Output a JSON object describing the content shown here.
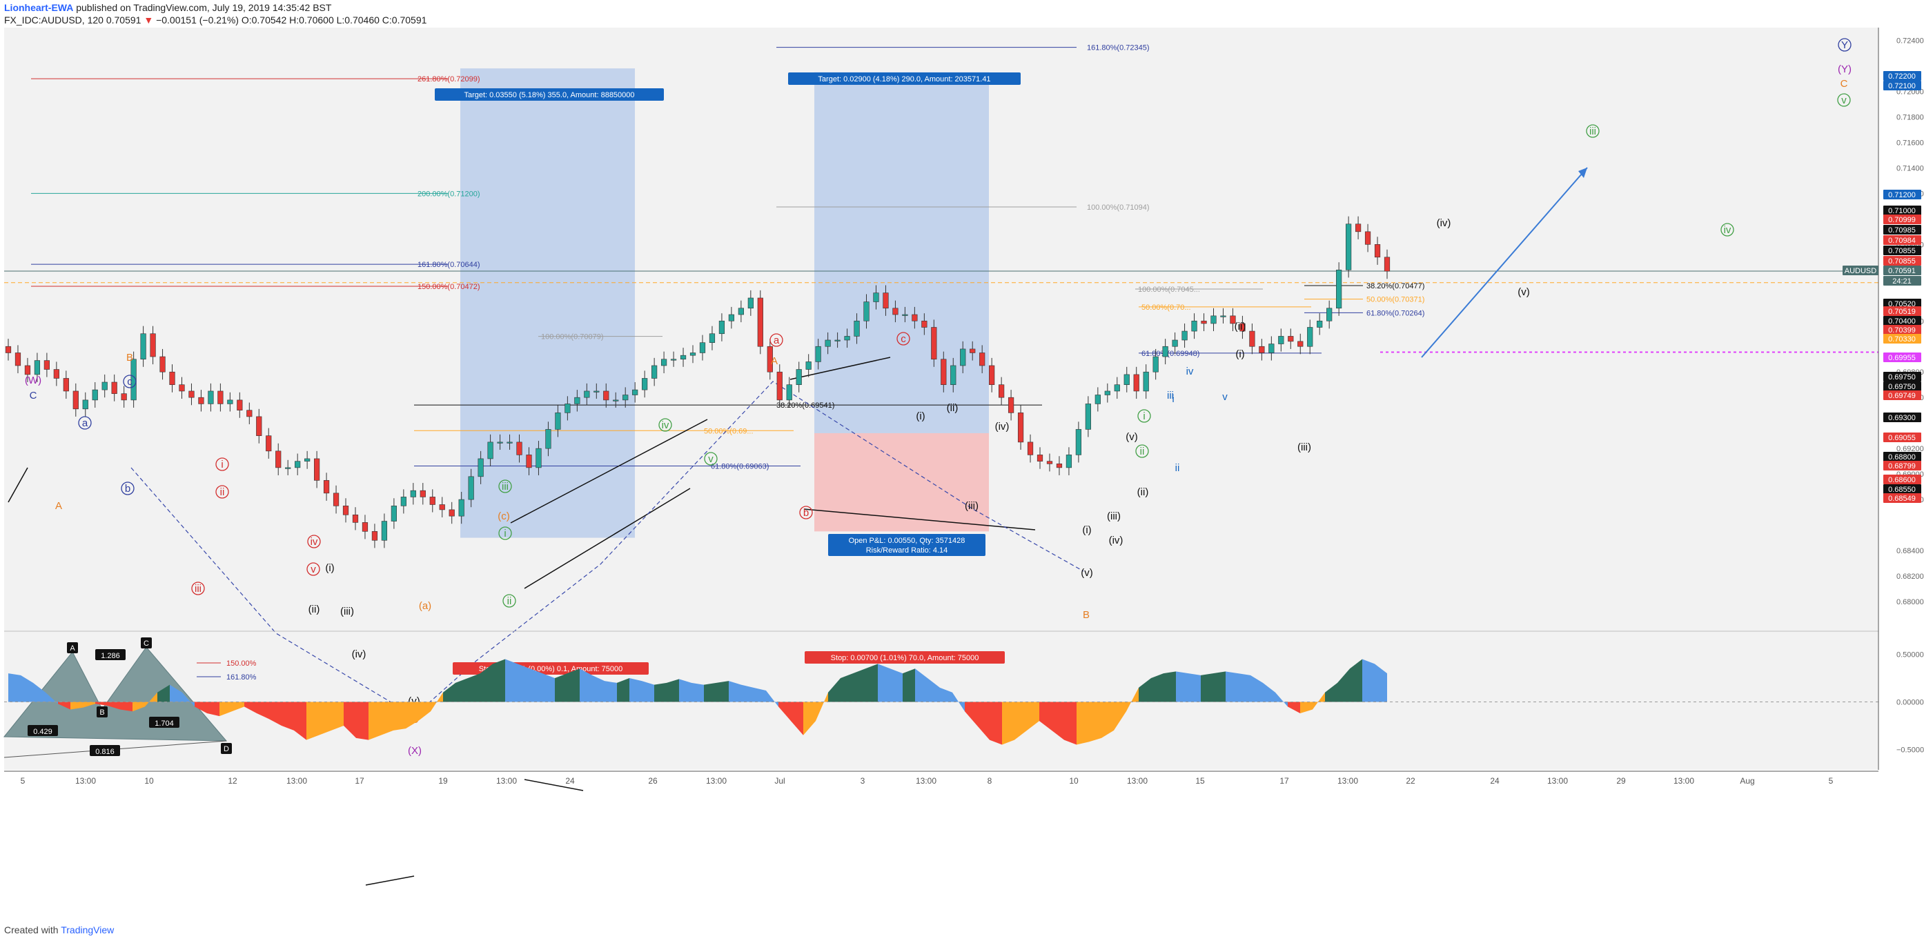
{
  "header": {
    "author": "Lionheart-EWA",
    "published": "published on TradingView.com, July 19, 2019 14:35:42 BST",
    "symbol": "FX_IDC:AUDUSD, 120",
    "last": "0.70591",
    "change": "−0.00151 (−0.21%)",
    "ohlc": "O:0.70542 H:0.70600 L:0.70460 C:0.70591"
  },
  "footer": {
    "created_with": "Created with",
    "brand": "TradingView"
  },
  "colors": {
    "up": "#26a69a",
    "down": "#e53935",
    "target_zone": "#c3d3ec",
    "stop_zone": "#f5c3c3",
    "osc_up": "#2e6b57",
    "osc_blue": "#5b9be6",
    "osc_red": "#f44336",
    "osc_orange": "#ffa726"
  },
  "chart_data": [
    {
      "type": "candlestick",
      "title": "AUDUSD 120",
      "ylim": [
        0.678,
        0.725
      ],
      "y_ticks": [
        "0.72400",
        "0.72000",
        "0.71800",
        "0.71600",
        "0.71400",
        "0.71200",
        "0.70800",
        "0.70200",
        "0.69800",
        "0.69600",
        "0.69200",
        "0.69000",
        "0.68800",
        "0.68400",
        "0.68200",
        "0.68000"
      ],
      "x_ticks": [
        "5",
        "13:00",
        "10",
        "12",
        "13:00",
        "17",
        "19",
        "13:00",
        "24",
        "26",
        "13:00",
        "Jul",
        "3",
        "13:00",
        "8",
        "10",
        "13:00",
        "15",
        "17",
        "13:00",
        "22",
        "24",
        "13:00",
        "29",
        "13:00",
        "Aug",
        "5"
      ],
      "grid": false,
      "current_price": {
        "symbol": "AUDUSD",
        "value": "0.70591",
        "countdown": "24:21"
      },
      "price_badges": [
        {
          "v": "0.72200",
          "c": "#1565c0"
        },
        {
          "v": "0.72100",
          "c": "#1565c0"
        },
        {
          "v": "0.71200",
          "c": "#1565c0"
        },
        {
          "v": "0.71000",
          "c": "#111111"
        },
        {
          "v": "0.70999",
          "c": "#e53935"
        },
        {
          "v": "0.70985",
          "c": "#111111"
        },
        {
          "v": "0.70984",
          "c": "#e53935"
        },
        {
          "v": "0.70855",
          "c": "#111111"
        },
        {
          "v": "0.70855",
          "c": "#e53935"
        },
        {
          "v": "0.70520",
          "c": "#111111"
        },
        {
          "v": "0.70519",
          "c": "#e53935"
        },
        {
          "v": "0.70400",
          "c": "#111111"
        },
        {
          "v": "0.70399",
          "c": "#e53935"
        },
        {
          "v": "0.70330",
          "c": "#ffa726"
        },
        {
          "v": "0.69955",
          "c": "#e040fb"
        },
        {
          "v": "0.69750",
          "c": "#111111"
        },
        {
          "v": "0.69750",
          "c": "#111111"
        },
        {
          "v": "0.69749",
          "c": "#e53935"
        },
        {
          "v": "0.69300",
          "c": "#111111"
        },
        {
          "v": "0.69055",
          "c": "#e53935"
        },
        {
          "v": "0.68800",
          "c": "#111111"
        },
        {
          "v": "0.68799",
          "c": "#e53935"
        },
        {
          "v": "0.68600",
          "c": "#e53935"
        },
        {
          "v": "0.68550",
          "c": "#111111"
        },
        {
          "v": "0.68549",
          "c": "#e53935"
        }
      ],
      "closes": [
        0.6995,
        0.6985,
        0.6978,
        0.6989,
        0.6982,
        0.6975,
        0.6965,
        0.6951,
        0.6958,
        0.6966,
        0.6972,
        0.6963,
        0.6958,
        0.699,
        0.701,
        0.6992,
        0.698,
        0.697,
        0.6965,
        0.696,
        0.6955,
        0.6965,
        0.6955,
        0.6958,
        0.695,
        0.6945,
        0.693,
        0.6918,
        0.6905,
        0.6905,
        0.691,
        0.6912,
        0.6895,
        0.6885,
        0.6875,
        0.6868,
        0.6862,
        0.6855,
        0.6848,
        0.6863,
        0.6875,
        0.6882,
        0.6887,
        0.6882,
        0.6876,
        0.6872,
        0.6867,
        0.688,
        0.6898,
        0.6912,
        0.6925,
        0.6925,
        0.6925,
        0.6915,
        0.6905,
        0.692,
        0.6935,
        0.6948,
        0.6955,
        0.696,
        0.6965,
        0.6965,
        0.6958,
        0.6958,
        0.6962,
        0.6966,
        0.6975,
        0.6985,
        0.699,
        0.699,
        0.6993,
        0.6995,
        0.7003,
        0.701,
        0.702,
        0.7025,
        0.703,
        0.7038,
        0.7,
        0.698,
        0.6958,
        0.697,
        0.6982,
        0.6988,
        0.7,
        0.7005,
        0.7005,
        0.7008,
        0.702,
        0.7035,
        0.7042,
        0.703,
        0.7025,
        0.7025,
        0.702,
        0.7015,
        0.699,
        0.697,
        0.6985,
        0.6998,
        0.6995,
        0.6985,
        0.697,
        0.696,
        0.6948,
        0.6925,
        0.6915,
        0.691,
        0.6908,
        0.6905,
        0.6915,
        0.6935,
        0.6955,
        0.6962,
        0.6965,
        0.697,
        0.6978,
        0.6965,
        0.698,
        0.6992,
        0.7,
        0.7005,
        0.7012,
        0.702,
        0.7018,
        0.7024,
        0.7024,
        0.7018,
        0.7012,
        0.7,
        0.6995,
        0.7002,
        0.7008,
        0.7004,
        0.7,
        0.7015,
        0.702,
        0.703,
        0.706,
        0.7096,
        0.709,
        0.708,
        0.707,
        0.7059
      ],
      "reference_levels": [
        {
          "label": "261.80%(0.72099)",
          "value": 0.72099,
          "color": "#d32f2f"
        },
        {
          "label": "200.00%(0.71200)",
          "value": 0.712,
          "color": "#26a69a"
        },
        {
          "label": "161.80%(0.70644)",
          "value": 0.70644,
          "color": "#303f9f"
        },
        {
          "label": "150.00%(0.70472)",
          "value": 0.70472,
          "color": "#d32f2f"
        },
        {
          "label": "100.00%(0.70079)",
          "value": 0.70079,
          "color": "#9e9e9e"
        },
        {
          "label": "38.20%(0.69541)",
          "value": 0.69541,
          "color": "#111111"
        },
        {
          "label": "50.00%(0.69...",
          "value": 0.6934,
          "color": "#ffa726"
        },
        {
          "label": "61.80%(0.69063)",
          "value": 0.69063,
          "color": "#303f9f"
        },
        {
          "label": "161.80%(0.72345)",
          "value": 0.72345,
          "color": "#303f9f"
        },
        {
          "label": "100.00%(0.71094)",
          "value": 0.71094,
          "color": "#9e9e9e"
        },
        {
          "label": "100.00%(0.7045...",
          "value": 0.7045,
          "color": "#9e9e9e"
        },
        {
          "label": "50.00%(0.70...",
          "value": 0.7031,
          "color": "#ffa726"
        },
        {
          "label": "61.80%(0.69948)",
          "value": 0.69948,
          "color": "#303f9f"
        },
        {
          "label": "38.20%(0.70477)",
          "value": 0.70477,
          "color": "#111111"
        },
        {
          "label": "50.00%(0.70371)",
          "value": 0.70371,
          "color": "#ffa726"
        },
        {
          "label": "61.80%(0.70264)",
          "value": 0.70264,
          "color": "#303f9f"
        }
      ],
      "mini_levels": [
        {
          "label": "150.00%",
          "color": "#d32f2f"
        },
        {
          "label": "161.80%",
          "color": "#303f9f"
        }
      ],
      "positions": [
        {
          "label": "Target: 0.03550 (5.18%) 355.0, Amount: 88850000"
        },
        {
          "label": "Target: 0.02900 (4.18%) 290.0, Amount: 203571.41"
        },
        {
          "label": "Stop: 0.00001 (0.00%) 0.1, Amount: 75000"
        },
        {
          "label": "Stop: 0.00700 (1.01%) 70.0, Amount: 75000"
        },
        {
          "label": "Open P&L: 0.00550, Qty: 3571428",
          "sub": "Risk/Reward Ratio: 4.14"
        }
      ],
      "harmonic": {
        "points": [
          "A",
          "B",
          "C",
          "D"
        ],
        "ratios": [
          "1.286",
          "0.429",
          "1.704",
          "0.816"
        ]
      },
      "wave_labels": [
        {
          "t": "(W)",
          "c": "#9c27b0"
        },
        {
          "t": "C",
          "c": "#303f9f"
        },
        {
          "t": "A",
          "c": "#e67e22"
        },
        {
          "t": "B",
          "c": "#e67e22"
        },
        {
          "t": "a",
          "c": "#303f9f",
          "circle": true
        },
        {
          "t": "b",
          "c": "#303f9f",
          "circle": true
        },
        {
          "t": "c",
          "c": "#303f9f",
          "circle": true
        },
        {
          "t": "i",
          "c": "#d32f2f",
          "circle": true
        },
        {
          "t": "ii",
          "c": "#d32f2f",
          "circle": true
        },
        {
          "t": "iii",
          "c": "#d32f2f",
          "circle": true
        },
        {
          "t": "iv",
          "c": "#d32f2f",
          "circle": true
        },
        {
          "t": "v",
          "c": "#d32f2f",
          "circle": true
        },
        {
          "t": "(i)",
          "c": "#111111"
        },
        {
          "t": "(ii)",
          "c": "#111111"
        },
        {
          "t": "(iii)",
          "c": "#111111"
        },
        {
          "t": "(iv)",
          "c": "#111111"
        },
        {
          "t": "(v)",
          "c": "#111111"
        },
        {
          "t": "C",
          "c": "#e67e22"
        },
        {
          "t": "(X)",
          "c": "#9c27b0"
        },
        {
          "t": "(a)",
          "c": "#e67e22"
        },
        {
          "t": "(b)",
          "c": "#e67e22"
        },
        {
          "t": "(c)",
          "c": "#e67e22"
        },
        {
          "t": "i",
          "c": "#43a047",
          "circle": true
        },
        {
          "t": "ii",
          "c": "#43a047",
          "circle": true
        },
        {
          "t": "iii",
          "c": "#43a047",
          "circle": true
        },
        {
          "t": "iv",
          "c": "#43a047",
          "circle": true
        },
        {
          "t": "v",
          "c": "#43a047",
          "circle": true
        },
        {
          "t": "A",
          "c": "#e67e22"
        },
        {
          "t": "a",
          "c": "#d32f2f",
          "circle": true
        },
        {
          "t": "b",
          "c": "#d32f2f",
          "circle": true
        },
        {
          "t": "c",
          "c": "#d32f2f",
          "circle": true
        },
        {
          "t": "(i)",
          "c": "#111111"
        },
        {
          "t": "(ii)",
          "c": "#111111"
        },
        {
          "t": "(iii)",
          "c": "#111111"
        },
        {
          "t": "(iv)",
          "c": "#111111"
        },
        {
          "t": "(v)",
          "c": "#111111"
        },
        {
          "t": "B",
          "c": "#e67e22"
        },
        {
          "t": "(i)",
          "c": "#111111"
        },
        {
          "t": "(ii)",
          "c": "#111111"
        },
        {
          "t": "(iii)",
          "c": "#111111"
        },
        {
          "t": "(iv)",
          "c": "#111111"
        },
        {
          "t": "(v)",
          "c": "#111111"
        },
        {
          "t": "i",
          "c": "#43a047",
          "circle": true
        },
        {
          "t": "ii",
          "c": "#43a047",
          "circle": true
        },
        {
          "t": "i",
          "c": "#1565c0"
        },
        {
          "t": "ii",
          "c": "#1565c0"
        },
        {
          "t": "iii",
          "c": "#1565c0"
        },
        {
          "t": "iv",
          "c": "#1565c0"
        },
        {
          "t": "v",
          "c": "#1565c0"
        },
        {
          "t": "(i)",
          "c": "#111111"
        },
        {
          "t": "(ii)",
          "c": "#111111"
        },
        {
          "t": "(iii)",
          "c": "#111111"
        },
        {
          "t": "(iv)",
          "c": "#111111"
        },
        {
          "t": "(v)",
          "c": "#111111"
        },
        {
          "t": "iii",
          "c": "#43a047",
          "circle": true
        },
        {
          "t": "iv",
          "c": "#43a047",
          "circle": true
        },
        {
          "t": "Y",
          "c": "#303f9f",
          "circle": true
        },
        {
          "t": "(Y)",
          "c": "#9c27b0"
        },
        {
          "t": "C",
          "c": "#e67e22"
        },
        {
          "t": "v",
          "c": "#43a047",
          "circle": true
        }
      ]
    },
    {
      "type": "area",
      "title": "oscillator",
      "ylim": [
        -0.7,
        0.7
      ],
      "y_ticks": [
        "0.50000",
        "0.00000",
        "−0.50000"
      ],
      "values": [
        0.3,
        0.28,
        0.2,
        0.1,
        -0.02,
        -0.08,
        -0.06,
        -0.02,
        -0.04,
        -0.08,
        -0.1,
        -0.05,
        0.1,
        0.18,
        0.1,
        -0.05,
        -0.12,
        -0.15,
        -0.1,
        -0.05,
        -0.12,
        -0.18,
        -0.25,
        -0.3,
        -0.4,
        -0.35,
        -0.3,
        -0.25,
        -0.38,
        -0.4,
        -0.35,
        -0.3,
        -0.28,
        -0.2,
        -0.1,
        0.1,
        0.2,
        0.25,
        0.3,
        0.4,
        0.45,
        0.4,
        0.35,
        0.3,
        0.25,
        0.3,
        0.35,
        0.28,
        0.22,
        0.2,
        0.25,
        0.22,
        0.18,
        0.2,
        0.24,
        0.2,
        0.18,
        0.2,
        0.22,
        0.18,
        0.15,
        0.12,
        -0.05,
        -0.2,
        -0.35,
        -0.2,
        0.1,
        0.25,
        0.3,
        0.35,
        0.4,
        0.35,
        0.3,
        0.35,
        0.25,
        0.15,
        0.1,
        -0.1,
        -0.25,
        -0.4,
        -0.45,
        -0.4,
        -0.3,
        -0.2,
        -0.3,
        -0.4,
        -0.45,
        -0.42,
        -0.38,
        -0.3,
        -0.1,
        0.15,
        0.25,
        0.3,
        0.32,
        0.3,
        0.28,
        0.3,
        0.32,
        0.3,
        0.28,
        0.2,
        0.1,
        -0.05,
        -0.12,
        -0.08,
        0.1,
        0.2,
        0.35,
        0.45,
        0.4,
        0.3
      ]
    }
  ]
}
